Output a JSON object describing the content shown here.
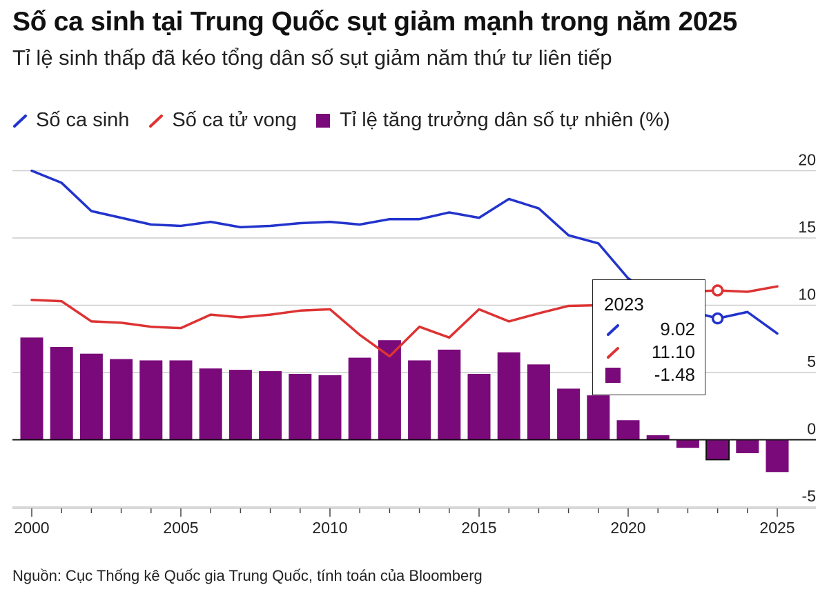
{
  "title": "Số ca sinh tại Trung Quốc sụt giảm mạnh trong năm 2025",
  "subtitle": "Tỉ lệ sinh thấp đã kéo tổng dân số sụt giảm năm thứ tư liên tiếp",
  "legend": {
    "births": "Số ca sinh",
    "deaths": "Số ca tử vong",
    "growth": "Tỉ lệ tăng trưởng dân số tự nhiên (%)"
  },
  "source": "Nguồn: Cục Thống kê Quốc gia Trung Quốc, tính toán của Bloomberg",
  "colors": {
    "births": "#2233cc",
    "deaths": "#dd3333",
    "growth": "#7a0a7a",
    "grid": "#cccccc",
    "axis": "#111111"
  },
  "tooltip": {
    "year": "2023",
    "births": "9.02",
    "deaths": "11.10",
    "growth": "-1.48"
  },
  "chart_data": {
    "type": "bar+line",
    "x": [
      2000,
      2001,
      2002,
      2003,
      2004,
      2005,
      2006,
      2007,
      2008,
      2009,
      2010,
      2011,
      2012,
      2013,
      2014,
      2015,
      2016,
      2017,
      2018,
      2019,
      2020,
      2021,
      2022,
      2023,
      2024,
      2025
    ],
    "x_ticks": [
      "2000",
      "2005",
      "2010",
      "2015",
      "2020",
      "2025"
    ],
    "y_ticks": [
      "20",
      "15",
      "10",
      "5",
      "0",
      "-5"
    ],
    "ylim": [
      -5,
      20
    ],
    "grid": true,
    "legend_position": "top-left",
    "series": [
      {
        "name": "Số ca sinh",
        "type": "line",
        "values": [
          20.0,
          19.1,
          17.0,
          16.5,
          16.0,
          15.9,
          16.2,
          15.8,
          15.9,
          16.1,
          16.2,
          16.0,
          16.4,
          16.4,
          16.9,
          16.5,
          17.9,
          17.2,
          15.2,
          14.6,
          12.0,
          10.6,
          9.6,
          9.02,
          9.5,
          7.9
        ]
      },
      {
        "name": "Số ca tử vong",
        "type": "line",
        "values": [
          10.4,
          10.3,
          8.8,
          8.7,
          8.4,
          8.3,
          9.3,
          9.1,
          9.3,
          9.6,
          9.7,
          7.8,
          6.2,
          8.4,
          7.6,
          9.7,
          8.8,
          9.4,
          9.95,
          10.0,
          10.2,
          10.5,
          11.0,
          11.1,
          11.0,
          11.4
        ]
      },
      {
        "name": "Tỉ lệ tăng trưởng dân số tự nhiên (%)",
        "type": "bar",
        "values": [
          7.6,
          6.9,
          6.4,
          6.0,
          5.9,
          5.9,
          5.3,
          5.2,
          5.1,
          4.9,
          4.8,
          6.1,
          7.4,
          5.9,
          6.7,
          4.9,
          6.5,
          5.6,
          3.8,
          3.3,
          1.45,
          0.34,
          -0.6,
          -1.48,
          -1.0,
          -2.4
        ]
      }
    ],
    "highlight": {
      "x": 2023
    }
  }
}
